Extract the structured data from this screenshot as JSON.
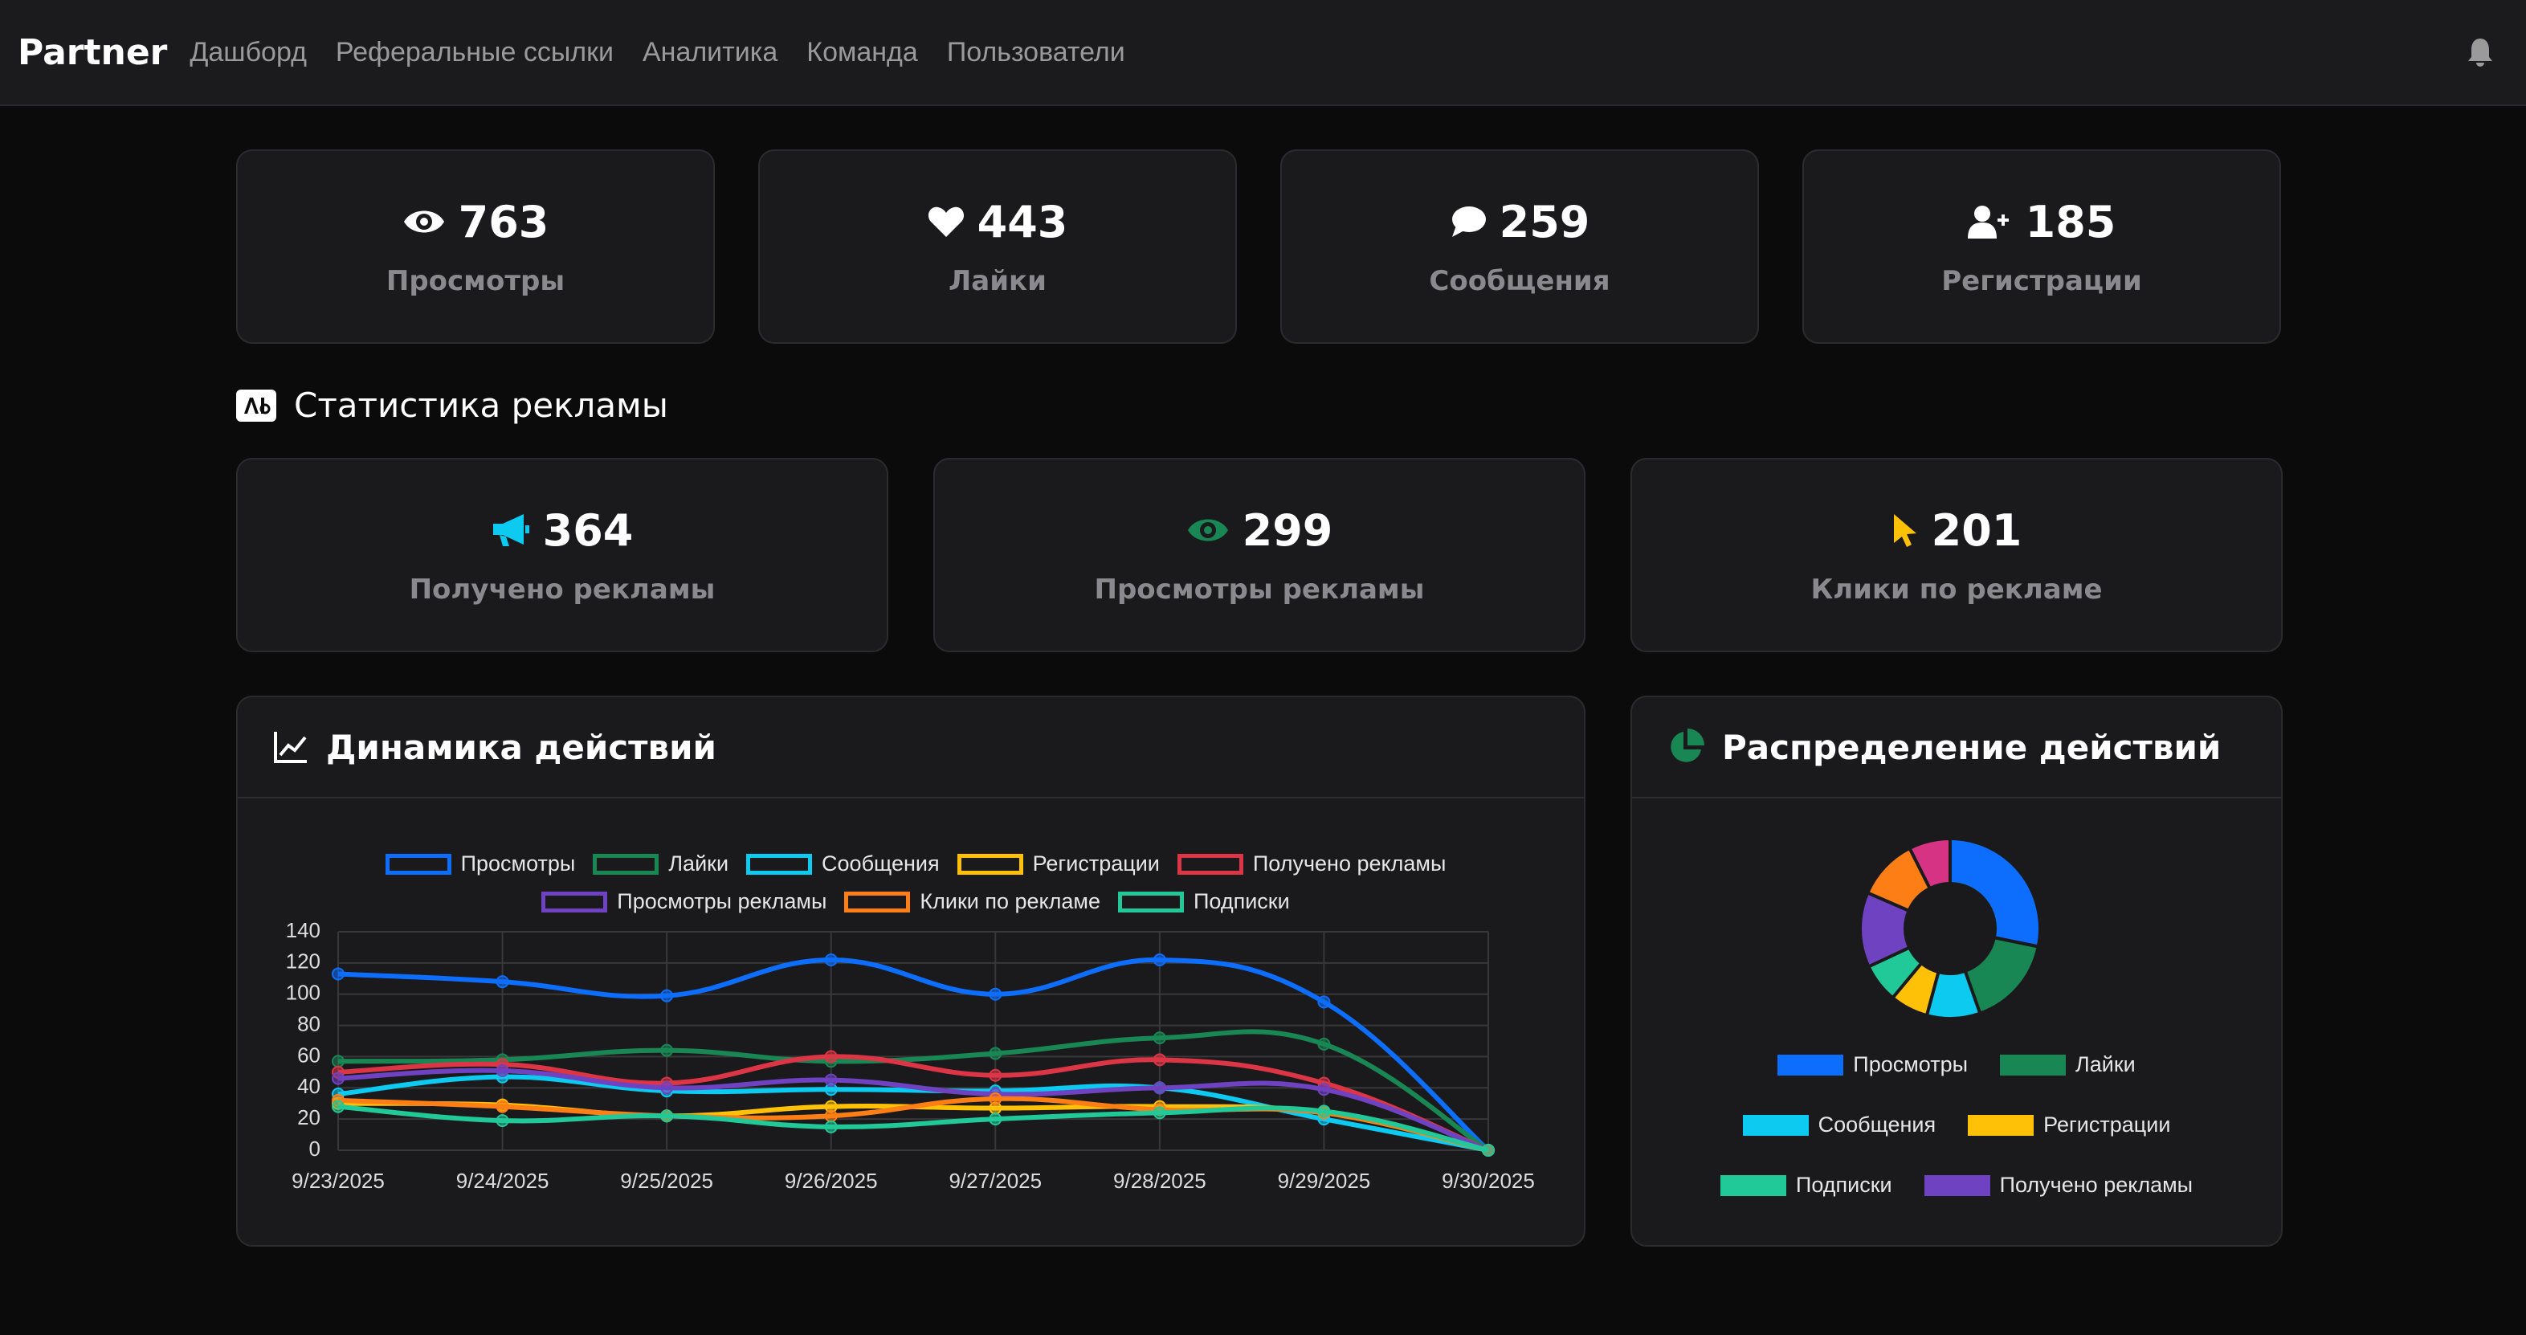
{
  "nav": {
    "brand": "Partner",
    "links": [
      "Дашборд",
      "Реферальные ссылки",
      "Аналитика",
      "Команда",
      "Пользователи"
    ]
  },
  "stats": [
    {
      "value": 763,
      "label": "Просмотры"
    },
    {
      "value": 443,
      "label": "Лайки"
    },
    {
      "value": 259,
      "label": "Сообщения"
    },
    {
      "value": 185,
      "label": "Регистрации"
    }
  ],
  "ad_section": {
    "title": "Статистика рекламы",
    "stats": [
      {
        "value": 364,
        "label": "Получено рекламы"
      },
      {
        "value": 299,
        "label": "Просмотры рекламы"
      },
      {
        "value": 201,
        "label": "Клики по рекламе"
      }
    ]
  },
  "chart_data": [
    {
      "type": "line",
      "title": "Динамика действий",
      "categories": [
        "9/23/2025",
        "9/24/2025",
        "9/25/2025",
        "9/26/2025",
        "9/27/2025",
        "9/28/2025",
        "9/29/2025",
        "9/30/2025"
      ],
      "series": [
        {
          "name": "Просмотры",
          "color": "#0d6efd",
          "values": [
            113,
            108,
            99,
            122,
            100,
            122,
            95,
            0
          ]
        },
        {
          "name": "Лайки",
          "color": "#198754",
          "values": [
            57,
            58,
            64,
            57,
            62,
            72,
            68,
            0
          ]
        },
        {
          "name": "Сообщения",
          "color": "#0dcaf0",
          "values": [
            36,
            47,
            38,
            39,
            38,
            40,
            20,
            0
          ]
        },
        {
          "name": "Регистрации",
          "color": "#ffc107",
          "values": [
            30,
            29,
            22,
            28,
            27,
            28,
            24,
            0
          ]
        },
        {
          "name": "Получено рекламы",
          "color": "#dc3545",
          "values": [
            50,
            55,
            43,
            60,
            48,
            58,
            43,
            0
          ]
        },
        {
          "name": "Просмотры рекламы",
          "color": "#6f42c1",
          "values": [
            46,
            51,
            40,
            45,
            36,
            40,
            39,
            0
          ]
        },
        {
          "name": "Клики по рекламе",
          "color": "#fd7e14",
          "values": [
            32,
            28,
            22,
            22,
            33,
            26,
            24,
            0
          ]
        },
        {
          "name": "Подписки",
          "color": "#20c997",
          "values": [
            28,
            19,
            22,
            15,
            20,
            24,
            25,
            0
          ]
        }
      ],
      "ylim": [
        0,
        140
      ],
      "yticks": [
        0,
        20,
        40,
        60,
        80,
        100,
        120,
        140
      ],
      "grid": true
    },
    {
      "type": "pie",
      "title": "Распределение действий",
      "donut": true,
      "categories": [
        "Просмотры",
        "Лайки",
        "Сообщения",
        "Регистрации",
        "Подписки",
        "Получено рекламы",
        null,
        null
      ],
      "values": [
        763,
        443,
        259,
        185,
        190,
        364,
        299,
        201
      ],
      "colors": [
        "#0d6efd",
        "#198754",
        "#0dcaf0",
        "#ffc107",
        "#20c997",
        "#6f42c1",
        "#fd7e14",
        "#d63384"
      ]
    }
  ]
}
